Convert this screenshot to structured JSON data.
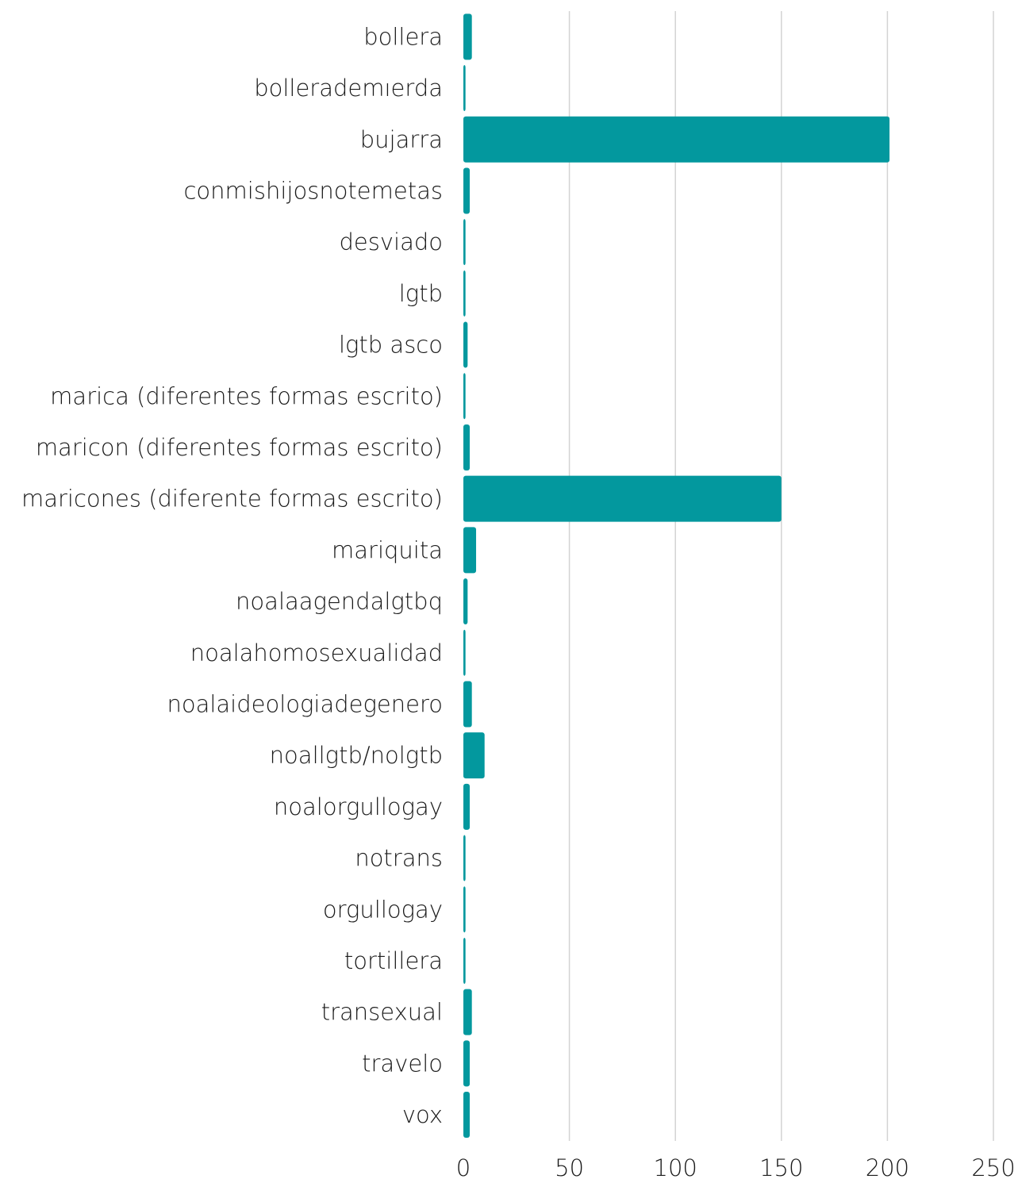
{
  "chart_data": {
    "type": "bar",
    "orientation": "horizontal",
    "title": "",
    "xlabel": "",
    "ylabel": "",
    "categories": [
      "bollera",
      "bollerademıerda",
      "bujarra",
      "conmishijosnotemetas",
      "desviado",
      "lgtb",
      "lgtb asco",
      "marica (diferentes formas escrito)",
      "maricon (diferentes formas escrito)",
      "maricones (diferente formas escrito)",
      "mariquita",
      "noalaagendalgtbq",
      "noalahomosexualidad",
      "noalaideologiadegenero",
      "noallgtb/nolgtb",
      "noalorgullogay",
      "notrans",
      "orgullogay",
      "tortillera",
      "transexual",
      "travelo",
      "vox"
    ],
    "values": [
      4,
      1,
      201,
      3,
      1,
      1,
      2,
      1,
      3,
      150,
      6,
      2,
      1,
      4,
      10,
      3,
      1,
      1,
      1,
      4,
      3,
      3
    ],
    "xlim": [
      0,
      250
    ],
    "xticks": [
      "0",
      "50",
      "100",
      "150",
      "200",
      "250"
    ],
    "grid": true,
    "bar_color": "#03989e"
  }
}
